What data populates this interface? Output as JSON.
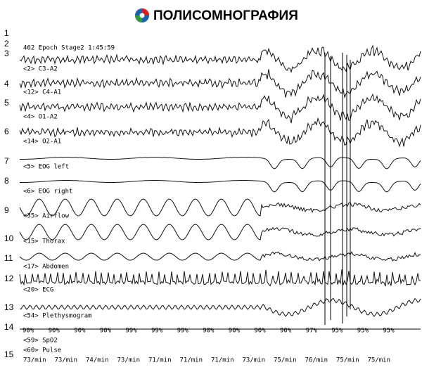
{
  "header": {
    "title": "ПОЛИСОМНОГРАФИЯ"
  },
  "epoch": "462 Epoch  Stage2 1:45:59",
  "row_numbers": [
    1,
    2,
    3,
    4,
    5,
    6,
    7,
    8,
    9,
    10,
    11,
    12,
    13,
    14,
    15
  ],
  "channels": [
    "<2> C3-A2",
    "<12> C4-A1",
    "<4> O1-A2",
    "<14> O2-A1",
    "<5> EOG left",
    "<6> EOG right",
    "<35> Airflow",
    "<15> Thorax",
    "<17> Abdomen",
    "<20> ECG",
    "<54> Plethysmogram",
    "<59> SpO2",
    "<60> Pulse"
  ],
  "spo2_values": [
    "90%",
    "90%",
    "90%",
    "90%",
    "99%",
    "99%",
    "99%",
    "90%",
    "90%",
    "90%",
    "90%",
    "97%",
    "95%",
    "95%",
    "95%"
  ],
  "pulse_values": [
    "73/min",
    "73/min",
    "74/min",
    "73/min",
    "71/min",
    "71/min",
    "71/min",
    "73/min",
    "75/min",
    "76/min",
    "75/min",
    "75/min"
  ]
}
